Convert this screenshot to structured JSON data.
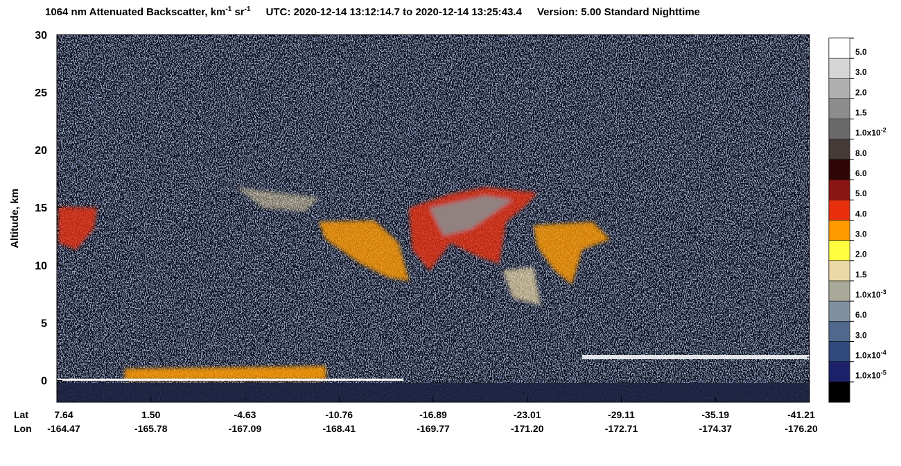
{
  "chart_data": {
    "type": "curtain",
    "title_parts": [
      {
        "text": "1064 nm Attenuated Backscatter, km"
      },
      {
        "sup": "-1"
      },
      {
        "text": " sr"
      },
      {
        "sup": "-1"
      },
      {
        "text": "UTC:  2020-12-14 13:12:14.7  to  2020-12-14 13:25:43.4"
      },
      {
        "text": "Version: 5.00  Standard  Nighttime"
      }
    ],
    "ylabel": "Altitude, km",
    "ylim": [
      -1.9,
      30
    ],
    "yticks": [
      0,
      5,
      10,
      15,
      20,
      25,
      30
    ],
    "x_row_labels": [
      "Lat",
      "Lon"
    ],
    "lat": [
      "7.64",
      "1.50",
      "-4.63",
      "-10.76",
      "-16.89",
      "-23.01",
      "-29.11",
      "-35.19",
      "-41.21"
    ],
    "lon": [
      "-164.47",
      "-165.78",
      "-167.09",
      "-168.41",
      "-169.77",
      "-171.20",
      "-172.71",
      "-174.37",
      "-176.20"
    ],
    "colorbar": {
      "colors": [
        "#ffffff",
        "#d6d6d6",
        "#b0b0b0",
        "#8c8c8c",
        "#6a6a6a",
        "#463a36",
        "#300505",
        "#8a1512",
        "#e8300f",
        "#ff9a00",
        "#ffff40",
        "#ecd9a8",
        "#a9a99a",
        "#8090a0",
        "#50688c",
        "#304a7e",
        "#1c226a",
        "#000000"
      ],
      "labels": [
        {
          "text": "5.0"
        },
        {
          "text": "3.0"
        },
        {
          "text": "2.0"
        },
        {
          "text": "1.5"
        },
        {
          "text": "1.0x10",
          "sup": "-2"
        },
        {
          "text": "8.0"
        },
        {
          "text": "6.0"
        },
        {
          "text": "5.0"
        },
        {
          "text": "4.0"
        },
        {
          "text": "3.0"
        },
        {
          "text": "2.0"
        },
        {
          "text": "1.5"
        },
        {
          "text": "1.0x10",
          "sup": "-3"
        },
        {
          "text": "6.0"
        },
        {
          "text": "3.0"
        },
        {
          "text": "1.0x10",
          "sup": "-4"
        },
        {
          "text": "1.0x10",
          "sup": "-5"
        }
      ]
    }
  }
}
